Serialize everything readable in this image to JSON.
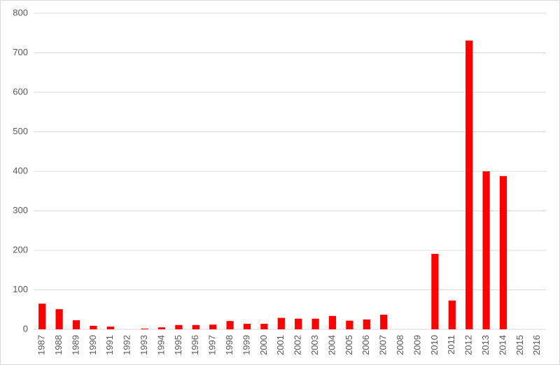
{
  "chart_data": {
    "type": "bar",
    "categories": [
      "1987",
      "1988",
      "1989",
      "1990",
      "1991",
      "1992",
      "1993",
      "1994",
      "1995",
      "1996",
      "1997",
      "1998",
      "1999",
      "2000",
      "2001",
      "2002",
      "2003",
      "2004",
      "2005",
      "2006",
      "2007",
      "2008",
      "2009",
      "2010",
      "2011",
      "2012",
      "2013",
      "2014",
      "2015",
      "2016"
    ],
    "values": [
      65,
      51,
      23,
      9,
      7,
      0,
      2,
      5,
      11,
      11,
      12,
      21,
      14,
      14,
      29,
      27,
      27,
      34,
      22,
      25,
      37,
      0,
      0,
      191,
      73,
      731,
      400,
      388,
      0,
      0
    ],
    "color": "#ff0000",
    "ylim": [
      0,
      800
    ],
    "yticks": [
      0,
      100,
      200,
      300,
      400,
      500,
      600,
      700,
      800
    ],
    "grid": true
  }
}
